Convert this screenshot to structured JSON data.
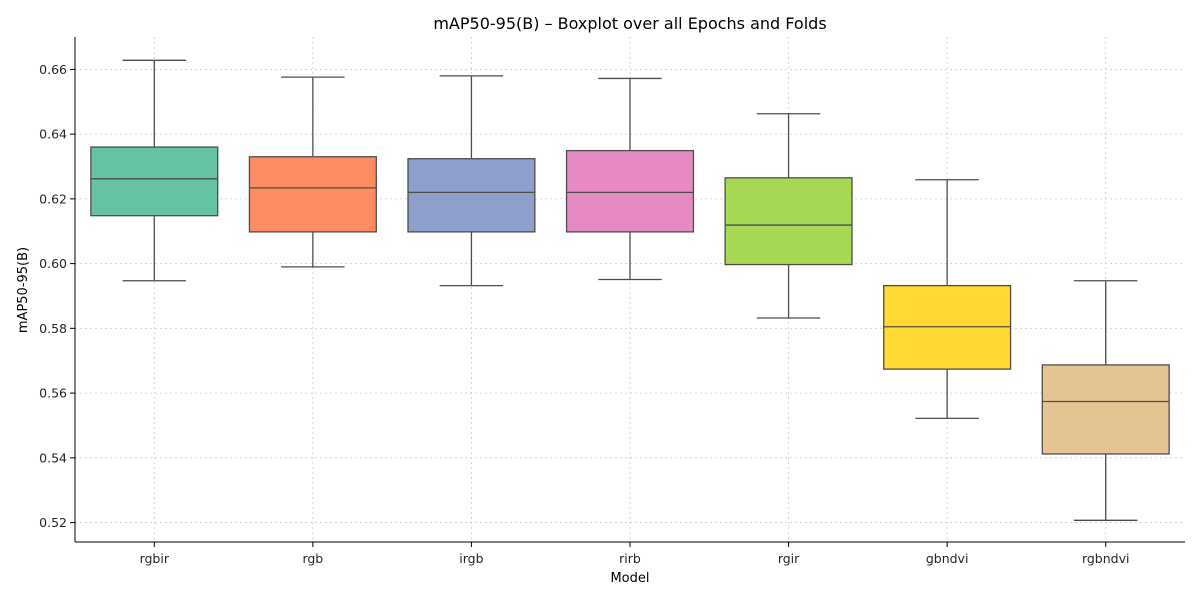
{
  "chart_data": {
    "type": "boxplot",
    "title": "mAP50-95(B) – Boxplot over all Epochs and Folds",
    "xlabel": "Model",
    "ylabel": "mAP50-95(B)",
    "ylim": [
      0.514,
      0.67
    ],
    "yticks": [
      0.52,
      0.54,
      0.56,
      0.58,
      0.6,
      0.62,
      0.64,
      0.66
    ],
    "ytick_labels": [
      "0.52",
      "0.54",
      "0.56",
      "0.58",
      "0.60",
      "0.62",
      "0.64",
      "0.66"
    ],
    "grid": true,
    "categories": [
      "rgbir",
      "rgb",
      "irgb",
      "rirb",
      "rgir",
      "gbndvi",
      "rgbndvi"
    ],
    "boxes": [
      {
        "category": "rgbir",
        "whisker_low": 0.5947,
        "q1": 0.6148,
        "median": 0.6262,
        "q3": 0.636,
        "whisker_high": 0.6628,
        "color": "#66c2a5"
      },
      {
        "category": "rgb",
        "whisker_low": 0.599,
        "q1": 0.6098,
        "median": 0.6234,
        "q3": 0.633,
        "whisker_high": 0.6576,
        "color": "#fc8d62"
      },
      {
        "category": "irgb",
        "whisker_low": 0.5932,
        "q1": 0.6098,
        "median": 0.622,
        "q3": 0.6324,
        "whisker_high": 0.658,
        "color": "#8da0cb"
      },
      {
        "category": "rirb",
        "whisker_low": 0.5951,
        "q1": 0.6098,
        "median": 0.622,
        "q3": 0.6349,
        "whisker_high": 0.6572,
        "color": "#e78ac3"
      },
      {
        "category": "rgir",
        "whisker_low": 0.5832,
        "q1": 0.5997,
        "median": 0.6119,
        "q3": 0.6265,
        "whisker_high": 0.6463,
        "color": "#a6d854"
      },
      {
        "category": "gbndvi",
        "whisker_low": 0.5522,
        "q1": 0.5674,
        "median": 0.5805,
        "q3": 0.5932,
        "whisker_high": 0.6259,
        "color": "#ffd92f"
      },
      {
        "category": "rgbndvi",
        "whisker_low": 0.5207,
        "q1": 0.5412,
        "median": 0.5574,
        "q3": 0.5687,
        "whisker_high": 0.5947,
        "color": "#e5c494"
      }
    ]
  }
}
